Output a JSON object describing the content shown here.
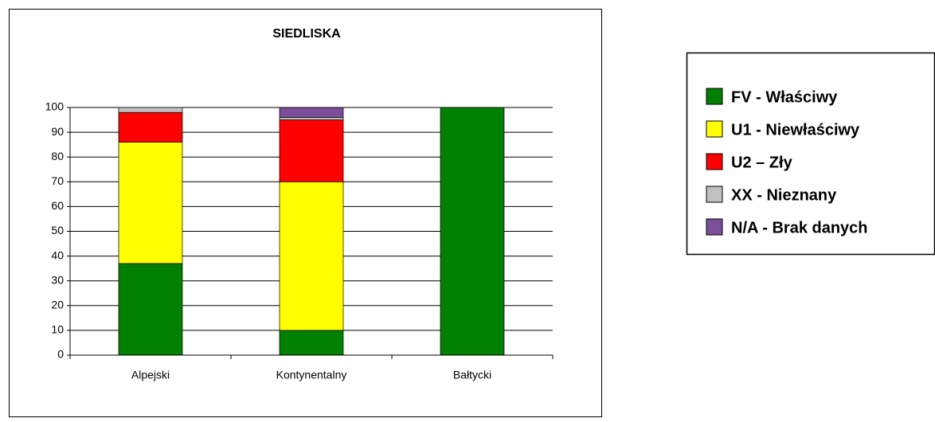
{
  "chart_data": {
    "type": "bar",
    "stacked": true,
    "title": "SIEDLISKA",
    "categories": [
      "Alpejski",
      "Kontynentalny",
      "Bałtycki"
    ],
    "series": [
      {
        "name": "FV - Właściwy",
        "color": "#008000",
        "values": [
          37,
          10,
          100
        ]
      },
      {
        "name": "U1 - Niewłaściwy",
        "color": "#ffff00",
        "values": [
          49,
          60,
          0
        ]
      },
      {
        "name": "U2 – Zły",
        "color": "#ff0000",
        "values": [
          12,
          25,
          0
        ]
      },
      {
        "name": "XX - Nieznany",
        "color": "#c0c0c0",
        "values": [
          2,
          1,
          0
        ]
      },
      {
        "name": "N/A - Brak danych",
        "color": "#7a4e9a",
        "values": [
          0,
          4,
          0
        ]
      }
    ],
    "ylim": [
      0,
      100
    ],
    "yticks": [
      0,
      10,
      20,
      30,
      40,
      50,
      60,
      70,
      80,
      90,
      100
    ],
    "grid": true,
    "legend": "right"
  }
}
